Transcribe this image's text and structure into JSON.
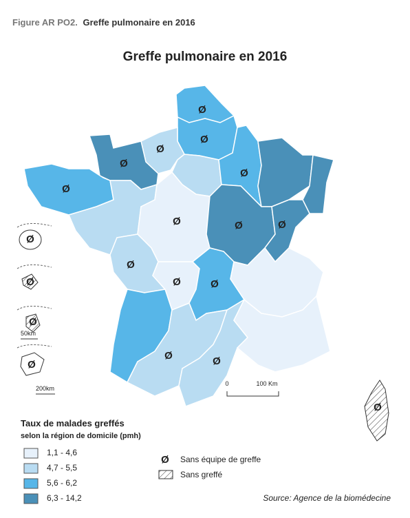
{
  "header": {
    "figure_label": "Figure AR PO2.",
    "figure_title": "Greffe pulmonaire en 2016"
  },
  "map": {
    "title": "Greffe pulmonaire en 2016",
    "no_team_symbol": "Ø",
    "scale_labels": [
      "0",
      "100 Km"
    ],
    "inset_scales": [
      "50km",
      "200km"
    ]
  },
  "legend": {
    "title": "Taux de malades greffés",
    "subtitle": "selon la région de domicile (pmh)",
    "classes": [
      {
        "label": "1,1 - 4,6",
        "color": "#e7f1fb"
      },
      {
        "label": "4,7 - 5,5",
        "color": "#b9dcf2"
      },
      {
        "label": "5,6 - 6,2",
        "color": "#57b6e8"
      },
      {
        "label": "6,3 - 14,2",
        "color": "#4a90b8"
      }
    ],
    "symbols": [
      {
        "label": "Sans équipe de greffe"
      },
      {
        "label": "Sans greffé"
      }
    ]
  },
  "source": "Source: Agence de la biomédecine"
}
